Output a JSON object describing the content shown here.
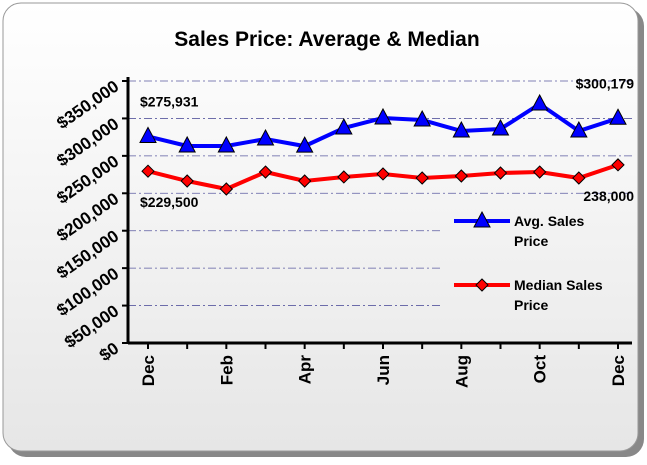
{
  "chart_data": {
    "type": "line",
    "title": "Sales Price:  Average & Median",
    "categories": [
      "Dec",
      null,
      "Feb",
      null,
      "Apr",
      null,
      "Jun",
      null,
      "Aug",
      null,
      "Oct",
      null,
      "Dec"
    ],
    "series": [
      {
        "name": "Avg. Sales Price",
        "color": "#0000ff",
        "marker": "triangle",
        "values": [
          275931,
          263200,
          263200,
          272500,
          263000,
          287200,
          300600,
          297900,
          283200,
          285900,
          319300,
          283200,
          300179
        ],
        "value_labels": [
          "$275,931",
          null,
          null,
          null,
          null,
          null,
          null,
          null,
          null,
          null,
          null,
          null,
          "$300,179"
        ]
      },
      {
        "name": "Median Sales Price",
        "color": "#ff0000",
        "marker": "diamond",
        "values": [
          229500,
          216400,
          205700,
          228400,
          216400,
          221800,
          225800,
          220400,
          223100,
          227100,
          228400,
          220400,
          238000
        ],
        "value_labels": [
          "$229,500",
          null,
          null,
          null,
          null,
          null,
          null,
          null,
          null,
          null,
          null,
          null,
          "238,000"
        ]
      }
    ],
    "ylim": [
      0,
      350000
    ],
    "yticks": [
      {
        "value": 0,
        "label": "$0"
      },
      {
        "value": 50000,
        "label": "$50,000"
      },
      {
        "value": 100000,
        "label": "$100,000"
      },
      {
        "value": 150000,
        "label": "$150,000"
      },
      {
        "value": 200000,
        "label": "$200,000"
      },
      {
        "value": 250000,
        "label": "$250,000"
      },
      {
        "value": 300000,
        "label": "$300,000"
      },
      {
        "value": 350000,
        "label": "$350,000"
      }
    ],
    "grid": true,
    "legend": "right"
  }
}
